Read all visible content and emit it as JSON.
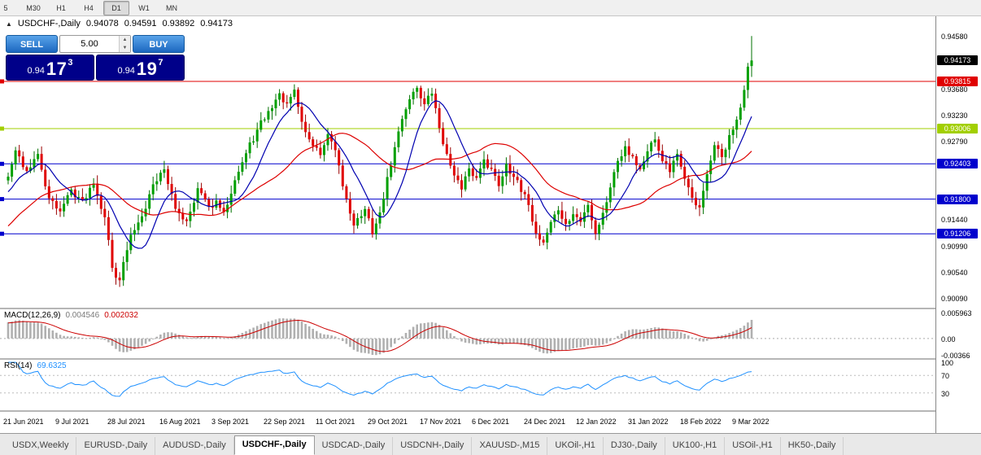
{
  "toolbar": {
    "timeframe_buttons": [
      {
        "label": "5",
        "active": false
      },
      {
        "label": "M30",
        "active": false
      },
      {
        "label": "H1",
        "active": false
      },
      {
        "label": "H4",
        "active": false
      },
      {
        "label": "D1",
        "active": true
      },
      {
        "label": "W1",
        "active": false
      },
      {
        "label": "MN",
        "active": false
      }
    ]
  },
  "header": {
    "collapse_icon": "▲",
    "symbol_period": "USDCHF-,Daily",
    "open": "0.94078",
    "high": "0.94591",
    "low": "0.93892",
    "close": "0.94173"
  },
  "trade_panel": {
    "sell_label": "SELL",
    "buy_label": "BUY",
    "volume": "5.00",
    "sell_price": {
      "base": "0.94",
      "big": "17",
      "sup": "3"
    },
    "buy_price": {
      "base": "0.94",
      "big": "19",
      "sup": "7"
    }
  },
  "tabs": {
    "active_index": 3,
    "items": [
      {
        "label": "USDX,Weekly"
      },
      {
        "label": "EURUSD-,Daily"
      },
      {
        "label": "AUDUSD-,Daily"
      },
      {
        "label": "USDCHF-,Daily"
      },
      {
        "label": "USDCAD-,Daily"
      },
      {
        "label": "USDCNH-,Daily"
      },
      {
        "label": "XAUUSD-,M15"
      },
      {
        "label": "UKOil-,H1"
      },
      {
        "label": "DJ30-,Daily"
      },
      {
        "label": "UK100-,H1"
      },
      {
        "label": "USOil-,H1"
      },
      {
        "label": "HK50-,Daily"
      }
    ]
  },
  "chart_data": {
    "type": "candlestick",
    "symbol": "USDCHF-",
    "period": "Daily",
    "price_axis": {
      "min": 0.8994,
      "max": 0.9493,
      "labels": [
        "0.94580",
        "0.93680",
        "0.93230",
        "0.92790",
        "0.91440",
        "0.90990",
        "0.90540",
        "0.90090"
      ]
    },
    "current_price": {
      "label": "0.94173",
      "value": 0.94173
    },
    "horizontal_lines": [
      {
        "value": 0.93815,
        "label": "0.93815",
        "color": "#e00000"
      },
      {
        "value": 0.93006,
        "label": "0.93006",
        "color": "#a2cf00"
      },
      {
        "value": 0.92403,
        "label": "0.92403",
        "color": "#0000cd"
      },
      {
        "value": 0.918,
        "label": "0.91800",
        "color": "#0000cd"
      },
      {
        "value": 0.91206,
        "label": "0.91206",
        "color": "#0000cd"
      }
    ],
    "x_labels": [
      "21 Jun 2021",
      "9 Jul 2021",
      "28 Jul 2021",
      "16 Aug 2021",
      "3 Sep 2021",
      "22 Sep 2021",
      "11 Oct 2021",
      "29 Oct 2021",
      "17 Nov 2021",
      "6 Dec 2021",
      "24 Dec 2021",
      "12 Jan 2022",
      "31 Jan 2022",
      "18 Feb 2022",
      "9 Mar 2022"
    ],
    "x_label_step": 14,
    "candles": {
      "count": 201,
      "warmup_count": 40,
      "warmup_start": 0.898,
      "noise": 0.0014,
      "seed": 42,
      "last": {
        "o": 0.94078,
        "h": 0.94591,
        "l": 0.93892,
        "c": 0.94173
      },
      "pivots": [
        [
          0,
          0.9218
        ],
        [
          2,
          0.9262
        ],
        [
          5,
          0.9228
        ],
        [
          8,
          0.9256
        ],
        [
          11,
          0.918
        ],
        [
          14,
          0.916
        ],
        [
          17,
          0.9196
        ],
        [
          20,
          0.9178
        ],
        [
          23,
          0.9208
        ],
        [
          26,
          0.915
        ],
        [
          28,
          0.9062
        ],
        [
          30,
          0.9042
        ],
        [
          33,
          0.9118
        ],
        [
          36,
          0.9152
        ],
        [
          39,
          0.9205
        ],
        [
          42,
          0.9232
        ],
        [
          45,
          0.9162
        ],
        [
          48,
          0.9143
        ],
        [
          51,
          0.9198
        ],
        [
          54,
          0.9166
        ],
        [
          56,
          0.9176
        ],
        [
          58,
          0.9156
        ],
        [
          61,
          0.9214
        ],
        [
          64,
          0.9258
        ],
        [
          67,
          0.9298
        ],
        [
          70,
          0.933
        ],
        [
          73,
          0.936
        ],
        [
          75,
          0.9342
        ],
        [
          77,
          0.9366
        ],
        [
          79,
          0.9312
        ],
        [
          81,
          0.9282
        ],
        [
          84,
          0.9256
        ],
        [
          86,
          0.929
        ],
        [
          88,
          0.9262
        ],
        [
          90,
          0.9202
        ],
        [
          93,
          0.9136
        ],
        [
          96,
          0.9162
        ],
        [
          98,
          0.9121
        ],
        [
          100,
          0.9156
        ],
        [
          102,
          0.9216
        ],
        [
          104,
          0.9268
        ],
        [
          106,
          0.9318
        ],
        [
          108,
          0.9352
        ],
        [
          110,
          0.9371
        ],
        [
          112,
          0.9342
        ],
        [
          114,
          0.9361
        ],
        [
          116,
          0.9302
        ],
        [
          118,
          0.9256
        ],
        [
          120,
          0.9222
        ],
        [
          122,
          0.9196
        ],
        [
          124,
          0.9231
        ],
        [
          126,
          0.9216
        ],
        [
          128,
          0.9249
        ],
        [
          130,
          0.9231
        ],
        [
          132,
          0.9203
        ],
        [
          134,
          0.9241
        ],
        [
          136,
          0.9219
        ],
        [
          138,
          0.9192
        ],
        [
          140,
          0.9171
        ],
        [
          142,
          0.9121
        ],
        [
          144,
          0.9106
        ],
        [
          146,
          0.9141
        ],
        [
          148,
          0.9161
        ],
        [
          150,
          0.9136
        ],
        [
          152,
          0.9154
        ],
        [
          154,
          0.9141
        ],
        [
          156,
          0.9171
        ],
        [
          158,
          0.9121
        ],
        [
          160,
          0.9156
        ],
        [
          162,
          0.9201
        ],
        [
          164,
          0.9246
        ],
        [
          166,
          0.9271
        ],
        [
          168,
          0.9253
        ],
        [
          170,
          0.9231
        ],
        [
          172,
          0.9261
        ],
        [
          174,
          0.9281
        ],
        [
          176,
          0.9246
        ],
        [
          178,
          0.9226
        ],
        [
          180,
          0.9256
        ],
        [
          182,
          0.9216
        ],
        [
          184,
          0.9181
        ],
        [
          186,
          0.9166
        ],
        [
          188,
          0.9221
        ],
        [
          190,
          0.9271
        ],
        [
          192,
          0.9251
        ],
        [
          194,
          0.9291
        ],
        [
          196,
          0.9316
        ],
        [
          197,
          0.9336
        ],
        [
          198,
          0.9366
        ],
        [
          199,
          0.9405
        ],
        [
          200,
          0.94173
        ]
      ]
    },
    "moving_averages": [
      {
        "period": 30,
        "color": "#dd0000"
      },
      {
        "period": 10,
        "color": "#0000b0"
      }
    ],
    "macd": {
      "title": "MACD(12,26,9)",
      "value_main": "0.004546",
      "value_signal": "0.002032",
      "fast": 12,
      "slow": 26,
      "signal": 9,
      "axis_labels": [
        "0.005963",
        "0.00",
        "-0.00366"
      ],
      "range_min": -0.0045,
      "range_max": 0.0067,
      "hist_color": "#b0b0b0",
      "signal_color": "#cc0000"
    },
    "rsi": {
      "title": "RSI(14)",
      "value": "69.6325",
      "period": 14,
      "levels": [
        70,
        30
      ],
      "axis_labels": [
        "100",
        "70",
        "30"
      ],
      "color": "#1e90ff"
    }
  }
}
